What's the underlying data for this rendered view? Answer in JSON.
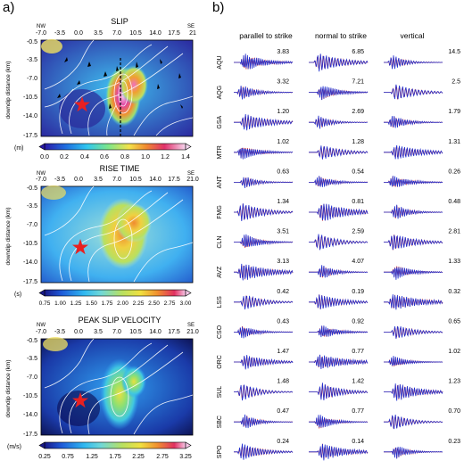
{
  "panel_labels": {
    "a": "a)",
    "b": "b)"
  },
  "maps": [
    {
      "title": "SLIP",
      "dir_left": "NW",
      "dir_right": "SE",
      "x_ticks": [
        "-7.0",
        "-3.5",
        "0.0",
        "3.5",
        "7.0",
        "10.5",
        "14.0",
        "17.5",
        "21"
      ],
      "y_ticks": [
        "-0.5",
        "-3.5",
        "-7.0",
        "-10.5",
        "-14.0",
        "-17.5"
      ],
      "ylabel": "downdip distance (km)",
      "unit": "(m)",
      "colorbar_ticks": [
        "0.0",
        "0.2",
        "0.4",
        "0.6",
        "0.8",
        "1.0",
        "1.2",
        "1.4"
      ]
    },
    {
      "title": "RISE TIME",
      "dir_left": "NW",
      "dir_right": "SE",
      "x_ticks": [
        "-7.0",
        "-3.5",
        "0.0",
        "3.5",
        "7.0",
        "10.5",
        "14.0",
        "17.5",
        "21.0"
      ],
      "y_ticks": [
        "-0.5",
        "-3.5",
        "-7.0",
        "-10.5",
        "-14.0",
        "-17.5"
      ],
      "ylabel": "downdip distance (km)",
      "unit": "(s)",
      "colorbar_ticks": [
        "0.75",
        "1.00",
        "1.25",
        "1.50",
        "1.75",
        "2.00",
        "2.25",
        "2.50",
        "2.75",
        "3.00"
      ]
    },
    {
      "title": "PEAK SLIP VELOCITY",
      "dir_left": "NW",
      "dir_right": "SE",
      "x_ticks": [
        "-7.0",
        "-3.5",
        "0.0",
        "3.5",
        "7.0",
        "10.5",
        "14.0",
        "17.5",
        "21.0"
      ],
      "y_ticks": [
        "-0.5",
        "-3.5",
        "-7.0",
        "-10.5",
        "-14.0",
        "-17.5"
      ],
      "ylabel": "downdip distance (km)",
      "unit": "(m/s)",
      "colorbar_ticks": [
        "0.25",
        "0.75",
        "1.25",
        "1.75",
        "2.25",
        "2.75",
        "3.25"
      ]
    }
  ],
  "waveforms": {
    "column_titles": [
      "parallel to strike",
      "normal to strike",
      "vertical"
    ],
    "stations": [
      {
        "code": "AQU",
        "amps": [
          "3.83",
          "6.85",
          "14.5"
        ]
      },
      {
        "code": "AQG",
        "amps": [
          "3.32",
          "7.21",
          "2.5"
        ]
      },
      {
        "code": "GSA",
        "amps": [
          "1.20",
          "2.69",
          "1.79"
        ]
      },
      {
        "code": "MTR",
        "amps": [
          "1.02",
          "1.28",
          "1.31"
        ]
      },
      {
        "code": "ANT",
        "amps": [
          "0.63",
          "0.54",
          "0.26"
        ]
      },
      {
        "code": "FMG",
        "amps": [
          "1.34",
          "0.81",
          "0.48"
        ]
      },
      {
        "code": "CLN",
        "amps": [
          "3.51",
          "2.59",
          "2.81"
        ]
      },
      {
        "code": "AVZ",
        "amps": [
          "3.13",
          "4.07",
          "1.33"
        ]
      },
      {
        "code": "LSS",
        "amps": [
          "0.42",
          "0.19",
          "0.32"
        ]
      },
      {
        "code": "CSO",
        "amps": [
          "0.43",
          "0.92",
          "0.65"
        ]
      },
      {
        "code": "ORC",
        "amps": [
          "1.47",
          "0.77",
          "1.02"
        ]
      },
      {
        "code": "SUL",
        "amps": [
          "1.48",
          "1.42",
          "1.23"
        ]
      },
      {
        "code": "SBC",
        "amps": [
          "0.47",
          "0.77",
          "0.70"
        ]
      },
      {
        "code": "SPO",
        "amps": [
          "0.24",
          "0.14",
          "0.23"
        ]
      }
    ],
    "colors": {
      "observed": "#2030d0",
      "synthetic": "#e03020"
    }
  }
}
